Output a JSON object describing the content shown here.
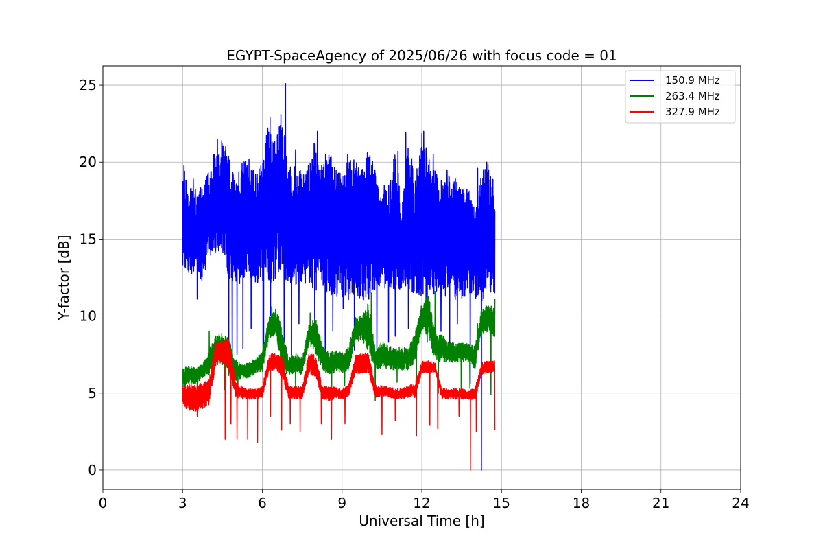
{
  "chart_data": {
    "type": "line",
    "title": "EGYPT-SpaceAgency of 2025/06/26 with focus code = 01",
    "xlabel": "Universal Time [h]",
    "ylabel": "Y-factor [dB]",
    "xlim": [
      0,
      24
    ],
    "ylim": [
      -1.25,
      26.25
    ],
    "xticks": [
      0,
      3,
      6,
      9,
      12,
      15,
      18,
      21,
      24
    ],
    "yticks": [
      0,
      5,
      10,
      15,
      20,
      25
    ],
    "grid": true,
    "legend_position": "top-right",
    "series": [
      {
        "name": "150.9 MHz",
        "color": "#0000ff",
        "x": [
          3.0,
          3.25,
          3.5,
          3.75,
          4.0,
          4.25,
          4.5,
          4.75,
          5.0,
          5.25,
          5.5,
          5.75,
          6.0,
          6.25,
          6.5,
          6.75,
          7.0,
          7.25,
          7.5,
          7.75,
          8.0,
          8.25,
          8.5,
          8.75,
          9.0,
          9.25,
          9.5,
          9.75,
          10.0,
          10.25,
          10.5,
          10.75,
          11.0,
          11.25,
          11.5,
          11.75,
          12.0,
          12.25,
          12.5,
          12.75,
          13.0,
          13.25,
          13.5,
          13.75,
          14.0,
          14.25,
          14.5,
          14.75
        ],
        "y_max": [
          20.3,
          18.5,
          18.2,
          18.5,
          19.6,
          20.8,
          21.5,
          20.5,
          18.5,
          20.5,
          19.5,
          19.5,
          20.0,
          22.9,
          21.5,
          23.1,
          20.5,
          19.8,
          19.5,
          19.5,
          22.0,
          19.8,
          21.5,
          19.5,
          19.5,
          20.3,
          20.5,
          19.5,
          21.5,
          19.5,
          17.8,
          18.5,
          20.8,
          17.5,
          21.8,
          19.0,
          22.0,
          20.5,
          19.5,
          18.8,
          19.5,
          19.0,
          18.5,
          18.5,
          17.0,
          19.5,
          20.0,
          18.5
        ],
        "y_min": [
          13.0,
          12.8,
          12.5,
          12.3,
          13.5,
          14.0,
          13.8,
          12.5,
          11.8,
          12.0,
          12.5,
          12.0,
          12.3,
          12.0,
          12.3,
          12.5,
          11.8,
          11.8,
          12.0,
          11.8,
          11.5,
          11.5,
          11.0,
          11.3,
          11.0,
          11.0,
          11.5,
          11.0,
          11.0,
          11.8,
          12.0,
          11.5,
          11.8,
          11.5,
          11.3,
          11.5,
          11.0,
          11.0,
          11.3,
          11.0,
          11.5,
          11.0,
          11.0,
          11.5,
          11.0,
          11.0,
          11.2,
          11.5
        ],
        "spikes_high": [
          [
            3.02,
            17.8
          ],
          [
            3.4,
            18.9
          ],
          [
            4.17,
            20.5
          ],
          [
            4.31,
            21.5
          ],
          [
            4.62,
            21.0
          ],
          [
            5.5,
            20.2
          ],
          [
            6.29,
            22.9
          ],
          [
            6.57,
            21.8
          ],
          [
            6.7,
            23.1
          ],
          [
            6.87,
            25.1
          ],
          [
            7.25,
            20.8
          ],
          [
            7.73,
            19.8
          ],
          [
            8.07,
            22.0
          ],
          [
            8.38,
            20.5
          ],
          [
            9.21,
            20.5
          ],
          [
            9.75,
            19.5
          ],
          [
            9.95,
            20.6
          ],
          [
            10.18,
            19.2
          ],
          [
            10.59,
            18.5
          ],
          [
            11.1,
            20.7
          ],
          [
            11.4,
            21.9
          ],
          [
            11.88,
            19.0
          ],
          [
            12.07,
            22.0
          ],
          [
            12.43,
            20.5
          ],
          [
            12.95,
            19.5
          ],
          [
            14.1,
            19.6
          ],
          [
            14.44,
            20.0
          ]
        ],
        "spikes_low": [
          [
            3.55,
            11.1
          ],
          [
            4.74,
            7.8
          ],
          [
            4.87,
            7.1
          ],
          [
            5.05,
            7.5
          ],
          [
            5.27,
            7.9
          ],
          [
            5.58,
            9.2
          ],
          [
            6.05,
            7.6
          ],
          [
            6.31,
            10.0
          ],
          [
            6.82,
            8.3
          ],
          [
            7.1,
            7.5
          ],
          [
            7.38,
            9.5
          ],
          [
            7.97,
            8.2
          ],
          [
            8.37,
            7.0
          ],
          [
            8.65,
            9.0
          ],
          [
            9.04,
            10.5
          ],
          [
            9.46,
            7.8
          ],
          [
            10.31,
            7.6
          ],
          [
            10.75,
            8.3
          ],
          [
            11.0,
            8.7
          ],
          [
            11.5,
            9.2
          ],
          [
            12.2,
            8.3
          ],
          [
            12.72,
            9.0
          ],
          [
            13.05,
            8.2
          ],
          [
            13.34,
            9.5
          ],
          [
            13.82,
            5.6
          ],
          [
            14.24,
            0.0
          ]
        ]
      },
      {
        "name": "263.4 MHz",
        "color": "#008000",
        "x": [
          3.0,
          3.25,
          3.5,
          3.75,
          4.0,
          4.25,
          4.5,
          4.75,
          5.0,
          5.25,
          5.5,
          5.75,
          6.0,
          6.25,
          6.5,
          6.75,
          7.0,
          7.25,
          7.5,
          7.75,
          8.0,
          8.25,
          8.5,
          8.75,
          9.0,
          9.25,
          9.5,
          9.75,
          10.0,
          10.25,
          10.5,
          10.75,
          11.0,
          11.25,
          11.5,
          11.75,
          12.0,
          12.25,
          12.5,
          12.75,
          13.0,
          13.25,
          13.5,
          13.75,
          14.0,
          14.25,
          14.5,
          14.75
        ],
        "y_max": [
          6.6,
          6.8,
          6.6,
          6.9,
          7.8,
          8.8,
          8.9,
          8.5,
          7.2,
          6.9,
          7.0,
          7.3,
          7.6,
          10.0,
          10.6,
          9.2,
          7.3,
          7.6,
          7.3,
          9.4,
          10.0,
          8.1,
          7.6,
          7.8,
          7.6,
          8.0,
          9.9,
          10.3,
          10.9,
          7.9,
          8.4,
          8.1,
          7.9,
          8.0,
          7.9,
          9.0,
          10.8,
          11.5,
          9.0,
          8.8,
          8.4,
          8.2,
          8.3,
          8.2,
          8.1,
          10.5,
          11.0,
          10.5
        ],
        "y_min": [
          5.4,
          5.6,
          5.6,
          6.0,
          6.2,
          7.0,
          6.8,
          6.0,
          5.8,
          5.9,
          6.0,
          6.2,
          6.4,
          8.5,
          8.8,
          6.3,
          6.2,
          6.3,
          6.2,
          8.2,
          7.6,
          6.5,
          6.2,
          6.3,
          6.3,
          6.5,
          8.2,
          8.5,
          7.5,
          6.5,
          6.6,
          6.5,
          6.5,
          6.5,
          6.5,
          7.0,
          9.2,
          8.5,
          7.0,
          7.0,
          7.0,
          7.0,
          7.0,
          7.0,
          6.5,
          8.8,
          9.0,
          8.5
        ],
        "spikes_low": [
          [
            3.1,
            5.2
          ],
          [
            3.55,
            4.9
          ],
          [
            4.58,
            5.2
          ],
          [
            5.08,
            4.8
          ],
          [
            7.25,
            5.5
          ],
          [
            8.61,
            5.0
          ],
          [
            9.1,
            5.5
          ],
          [
            10.25,
            4.5
          ],
          [
            11.07,
            5.7
          ],
          [
            11.8,
            5.2
          ],
          [
            12.62,
            5.0
          ],
          [
            13.48,
            5.0
          ],
          [
            13.81,
            5.3
          ],
          [
            14.6,
            4.9
          ]
        ],
        "spikes_high": [
          [
            4.0,
            9.0
          ],
          [
            6.35,
            10.6
          ],
          [
            7.8,
            10.2
          ],
          [
            10.1,
            11.5
          ],
          [
            12.5,
            11.6
          ],
          [
            14.1,
            9.5
          ],
          [
            14.76,
            11.1
          ]
        ]
      },
      {
        "name": "327.9 MHz",
        "color": "#ff0000",
        "x": [
          3.0,
          3.25,
          3.5,
          3.75,
          4.0,
          4.25,
          4.5,
          4.75,
          5.0,
          5.25,
          5.5,
          5.75,
          6.0,
          6.25,
          6.5,
          6.75,
          7.0,
          7.25,
          7.5,
          7.75,
          8.0,
          8.25,
          8.5,
          8.75,
          9.0,
          9.25,
          9.5,
          9.75,
          10.0,
          10.25,
          10.5,
          10.75,
          11.0,
          11.25,
          11.5,
          11.75,
          12.0,
          12.25,
          12.5,
          12.75,
          13.0,
          13.25,
          13.5,
          13.75,
          14.0,
          14.25,
          14.5,
          14.75
        ],
        "y_max": [
          5.5,
          5.6,
          5.5,
          5.7,
          6.0,
          8.2,
          8.5,
          8.5,
          5.8,
          5.4,
          5.3,
          5.3,
          5.4,
          7.5,
          7.6,
          7.5,
          5.4,
          5.5,
          5.4,
          7.6,
          7.5,
          5.5,
          5.4,
          5.4,
          5.3,
          5.6,
          7.5,
          7.6,
          7.6,
          5.5,
          5.5,
          5.4,
          5.3,
          5.3,
          5.5,
          5.7,
          7.1,
          7.1,
          7.0,
          5.3,
          5.3,
          5.3,
          5.3,
          5.2,
          5.3,
          7.0,
          7.1,
          7.1
        ],
        "y_min": [
          4.0,
          3.8,
          3.8,
          3.9,
          4.2,
          6.8,
          7.0,
          6.3,
          4.7,
          4.6,
          4.6,
          4.6,
          4.7,
          6.4,
          6.5,
          6.0,
          4.6,
          4.6,
          4.6,
          6.3,
          6.0,
          4.6,
          4.5,
          4.6,
          4.6,
          4.8,
          6.2,
          6.3,
          6.3,
          4.7,
          4.8,
          4.7,
          4.6,
          4.6,
          4.7,
          4.7,
          6.3,
          6.3,
          6.3,
          4.6,
          4.6,
          4.6,
          4.6,
          4.6,
          4.5,
          6.2,
          6.3,
          6.3
        ],
        "spikes_low": [
          [
            3.55,
            3.5
          ],
          [
            4.6,
            2.0
          ],
          [
            4.82,
            3.0
          ],
          [
            5.05,
            2.0
          ],
          [
            5.45,
            2.0
          ],
          [
            5.82,
            1.8
          ],
          [
            6.3,
            3.5
          ],
          [
            6.72,
            2.6
          ],
          [
            7.05,
            3.0
          ],
          [
            7.42,
            2.5
          ],
          [
            8.22,
            3.0
          ],
          [
            8.6,
            2.0
          ],
          [
            9.11,
            3.0
          ],
          [
            10.5,
            2.3
          ],
          [
            11.0,
            3.2
          ],
          [
            11.8,
            2.2
          ],
          [
            12.3,
            2.9
          ],
          [
            12.6,
            2.7
          ],
          [
            13.4,
            3.5
          ],
          [
            13.83,
            0.0
          ],
          [
            14.05,
            2.5
          ],
          [
            14.75,
            2.6
          ]
        ]
      }
    ]
  }
}
